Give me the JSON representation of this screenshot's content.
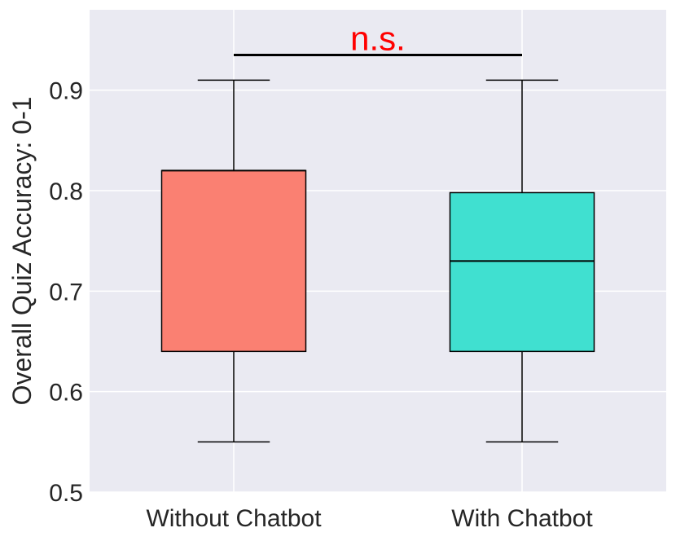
{
  "chart_data": {
    "type": "box",
    "title": "",
    "xlabel": "",
    "ylabel": "Overall Quiz Accuracy: 0-1",
    "ylim": [
      0.5,
      0.98
    ],
    "yticks": [
      "0.5",
      "0.6",
      "0.7",
      "0.8",
      "0.9"
    ],
    "grid": true,
    "categories": [
      "Without Chatbot",
      "With Chatbot"
    ],
    "boxes": [
      {
        "min": 0.55,
        "q1": 0.64,
        "median": 0.82,
        "q3": 0.82,
        "max": 0.91,
        "color": "#FA8072"
      },
      {
        "min": 0.55,
        "q1": 0.64,
        "median": 0.73,
        "q3": 0.798,
        "max": 0.91,
        "color": "#40E0D0"
      }
    ],
    "annotation": {
      "text": "n.s.",
      "y": 0.935,
      "color": "#FF0000"
    }
  }
}
